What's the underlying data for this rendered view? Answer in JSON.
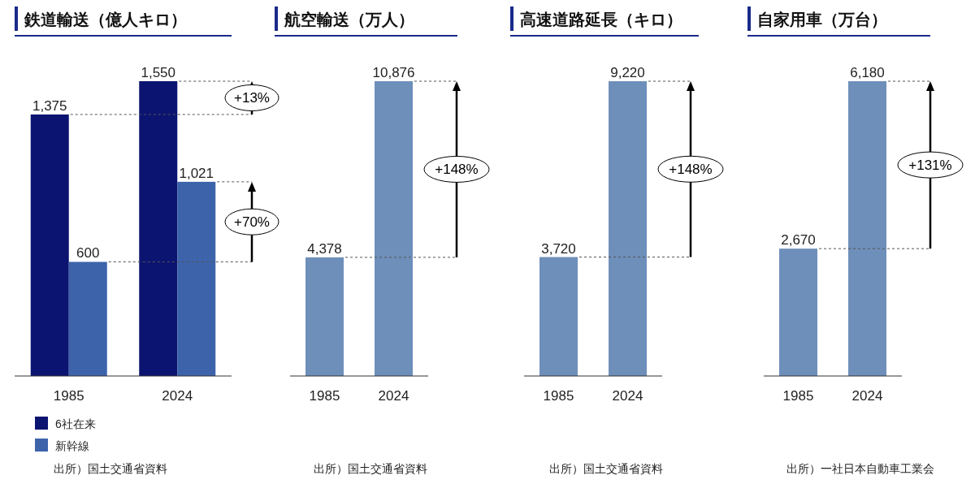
{
  "chart_data": [
    {
      "type": "bar",
      "title": "鉄道輸送（億人キロ）",
      "categories": [
        "1985",
        "2024"
      ],
      "legend": "bottom",
      "series": [
        {
          "name": "6社在来",
          "color": "#0b1470",
          "values": [
            1375,
            1550
          ],
          "value_labels": [
            "1,375",
            "1,550"
          ]
        },
        {
          "name": "新幹線",
          "color": "#3d63ab",
          "values": [
            600,
            1021
          ],
          "value_labels": [
            "600",
            "1,021"
          ]
        }
      ],
      "ref_lines": [
        {
          "axis": "y",
          "value": 1375,
          "line_style": "dashed",
          "color": "#555555"
        },
        {
          "axis": "y",
          "value": 1550,
          "line_style": "dashed",
          "color": "#555555"
        },
        {
          "axis": "y",
          "value": 600,
          "line_style": "dashed",
          "color": "#555555"
        },
        {
          "axis": "y",
          "value": 1021,
          "line_style": "dashed",
          "color": "#555555"
        }
      ],
      "annotations": [
        "+13%",
        "+70%",
        "出所）国土交通省資料"
      ]
    },
    {
      "type": "bar",
      "title": "航空輸送（万人）",
      "categories": [
        "1985",
        "2024"
      ],
      "series": [
        {
          "color": "#6e8fba",
          "values": [
            4378,
            10876
          ],
          "value_labels": [
            "4,378",
            "10,876"
          ]
        }
      ],
      "ref_lines": [
        {
          "axis": "y",
          "value": 4378,
          "line_style": "dashed",
          "color": "#555555"
        },
        {
          "axis": "y",
          "value": 10876,
          "line_style": "dashed",
          "color": "#555555"
        }
      ],
      "annotations": [
        "+148%",
        "出所）国土交通省資料"
      ]
    },
    {
      "type": "bar",
      "title": "高速道路延長（キロ）",
      "categories": [
        "1985",
        "2024"
      ],
      "series": [
        {
          "color": "#6e8fba",
          "values": [
            3720,
            9220
          ],
          "value_labels": [
            "3,720",
            "9,220"
          ]
        }
      ],
      "ref_lines": [
        {
          "axis": "y",
          "value": 3720,
          "line_style": "dashed",
          "color": "#555555"
        },
        {
          "axis": "y",
          "value": 9220,
          "line_style": "dashed",
          "color": "#555555"
        }
      ],
      "annotations": [
        "+148%",
        "出所）国土交通省資料"
      ]
    },
    {
      "type": "bar",
      "title": "自家用車（万台）",
      "categories": [
        "1985",
        "2024"
      ],
      "series": [
        {
          "color": "#6e8fba",
          "values": [
            2670,
            6180
          ],
          "value_labels": [
            "2,670",
            "6,180"
          ]
        }
      ],
      "ref_lines": [
        {
          "axis": "y",
          "value": 2670,
          "line_style": "dashed",
          "color": "#555555"
        },
        {
          "axis": "y",
          "value": 6180,
          "line_style": "dashed",
          "color": "#555555"
        }
      ],
      "annotations": [
        "+131%",
        "出所）一社日本自動車工業会"
      ]
    }
  ]
}
